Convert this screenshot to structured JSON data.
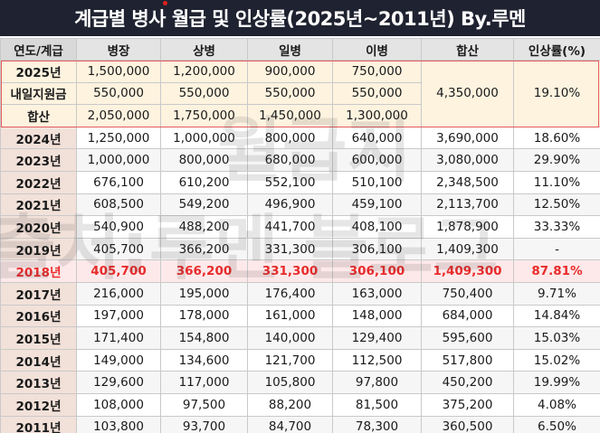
{
  "title": "계급별 병사 월급 및 인상률(2025년~2011년) By.루멘",
  "watermark": {
    "line1": "월급지",
    "line2": "출처:루멘 블로그"
  },
  "headers": [
    "연도/계급",
    "병장",
    "상병",
    "일병",
    "이병",
    "합산",
    "인상률(%)"
  ],
  "block_2025": {
    "rows": [
      {
        "label": "2025년",
        "values": [
          "1,500,000",
          "1,200,000",
          "900,000",
          "750,000"
        ]
      },
      {
        "label": "내일지원금",
        "values": [
          "550,000",
          "550,000",
          "550,000",
          "550,000"
        ]
      },
      {
        "label": "합산",
        "values": [
          "2,050,000",
          "1,750,000",
          "1,450,000",
          "1,300,000"
        ]
      }
    ],
    "total": "4,350,000",
    "rate": "19.10%"
  },
  "rows": [
    {
      "year": "2024년",
      "values": [
        "1,250,000",
        "1,000,000",
        "800,000",
        "640,000",
        "3,690,000",
        "18.60%"
      ]
    },
    {
      "year": "2023년",
      "values": [
        "1,000,000",
        "800,000",
        "680,000",
        "600,000",
        "3,080,000",
        "29.90%"
      ]
    },
    {
      "year": "2022년",
      "values": [
        "676,100",
        "610,200",
        "552,100",
        "510,100",
        "2,348,500",
        "11.10%"
      ]
    },
    {
      "year": "2021년",
      "values": [
        "608,500",
        "549,200",
        "496,900",
        "459,100",
        "2,113,700",
        "12.50%"
      ]
    },
    {
      "year": "2020년",
      "values": [
        "540,900",
        "488,200",
        "441,700",
        "408,100",
        "1,878,900",
        "33.33%"
      ]
    },
    {
      "year": "2019년",
      "values": [
        "405,700",
        "366,200",
        "331,300",
        "306,100",
        "1,409,300",
        "-"
      ]
    },
    {
      "year": "2018년",
      "values": [
        "405,700",
        "366,200",
        "331,300",
        "306,100",
        "1,409,300",
        "87.81%"
      ],
      "highlight": true
    },
    {
      "year": "2017년",
      "values": [
        "216,000",
        "195,000",
        "176,400",
        "163,000",
        "750,400",
        "9.71%"
      ]
    },
    {
      "year": "2016년",
      "values": [
        "197,000",
        "178,000",
        "161,000",
        "148,000",
        "684,000",
        "14.84%"
      ]
    },
    {
      "year": "2015년",
      "values": [
        "171,400",
        "154,800",
        "140,000",
        "129,400",
        "595,600",
        "15.03%"
      ]
    },
    {
      "year": "2014년",
      "values": [
        "149,000",
        "134,600",
        "121,700",
        "112,500",
        "517,800",
        "15.02%"
      ]
    },
    {
      "year": "2013년",
      "values": [
        "129,600",
        "117,000",
        "105,800",
        "97,800",
        "450,200",
        "19.99%"
      ]
    },
    {
      "year": "2012년",
      "values": [
        "108,000",
        "97,500",
        "88,200",
        "81,500",
        "375,200",
        "4.08%"
      ]
    },
    {
      "year": "2011년",
      "values": [
        "103,800",
        "93,700",
        "84,700",
        "78,300",
        "360,500",
        "6.50%"
      ]
    }
  ],
  "colors": {
    "title_bg": "#1f2230",
    "highlight_text": "#e82b2b",
    "block_bg": "#fdf3df",
    "year_cell_bg": "#f2e1d9"
  }
}
